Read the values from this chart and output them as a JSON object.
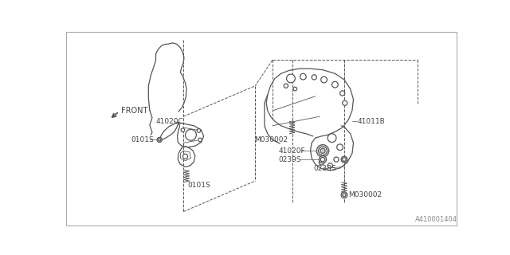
{
  "bg_color": "#ffffff",
  "border_color": "#aaaaaa",
  "line_color": "#555555",
  "text_color": "#444444",
  "diagram_id": "A410001404",
  "front_label": "FRONT",
  "label_41020C": "41020C",
  "label_0101S": "0101S",
  "label_41011B": "41011B",
  "label_M030002": "M030002",
  "label_41020F": "41020F",
  "label_0239S": "0239S",
  "label_0238S": "0238S",
  "figsize": [
    6.4,
    3.2
  ],
  "dpi": 100
}
